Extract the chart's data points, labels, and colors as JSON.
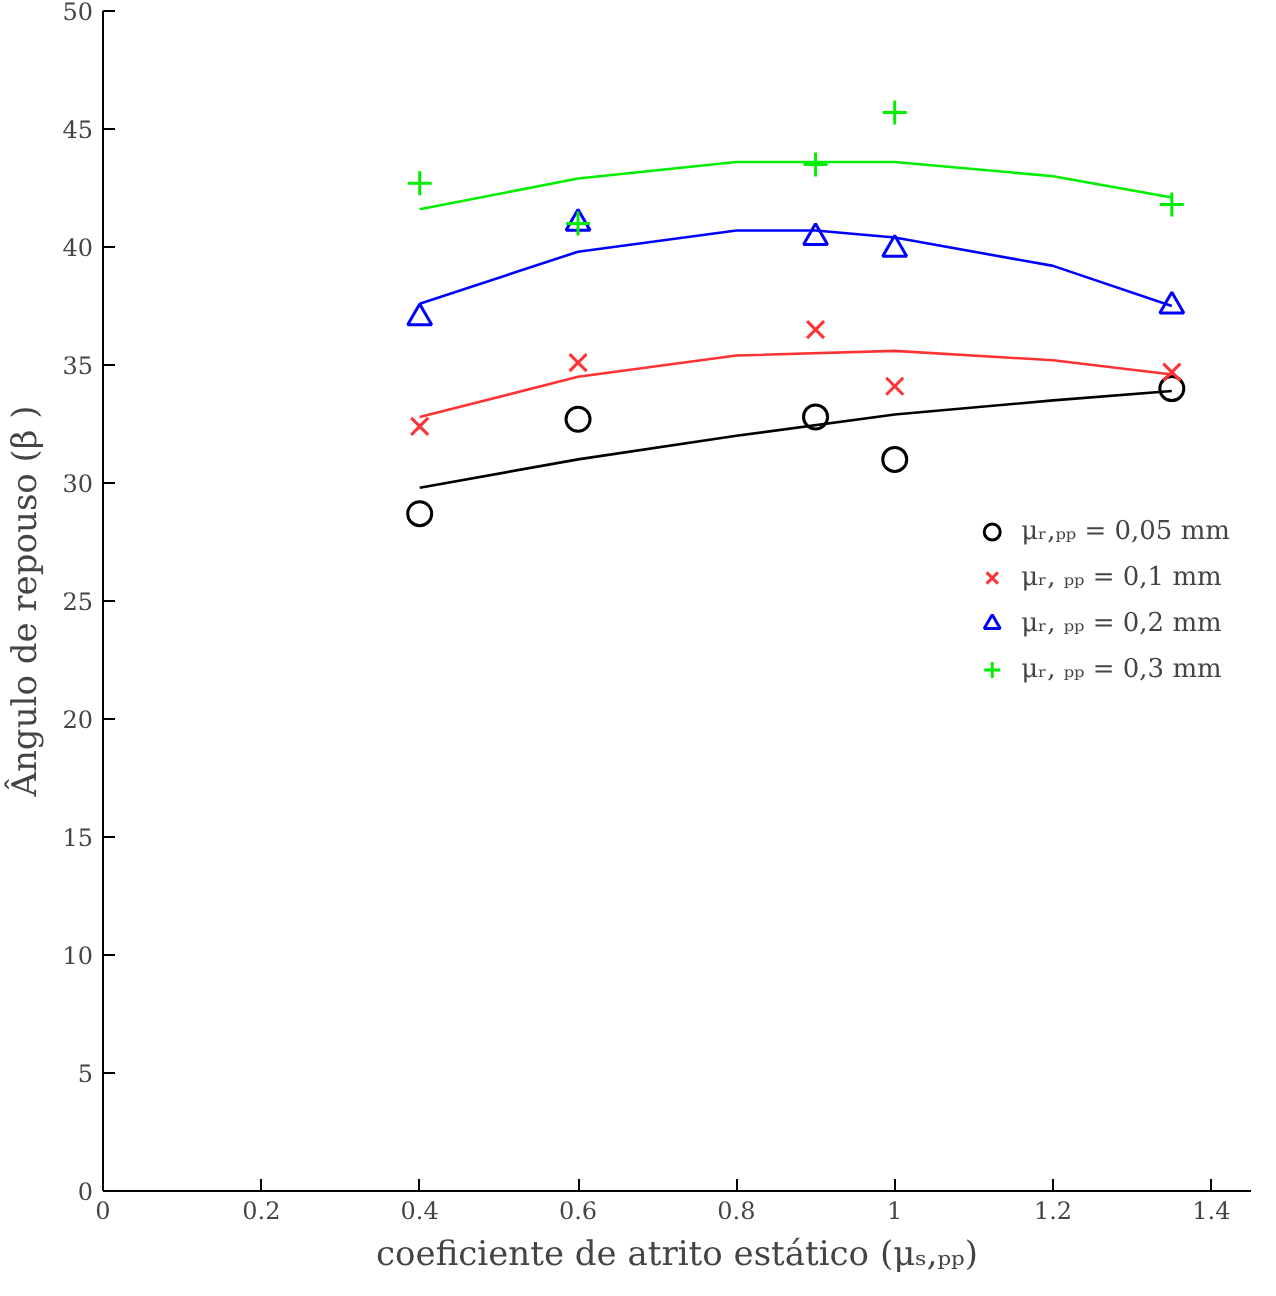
{
  "chart_data": {
    "type": "scatter",
    "xlabel": "coeficiente de atrito estático (μₛ,ₚₚ)",
    "ylabel": "Ângulo de repouso (β )",
    "x": [
      0.4,
      0.6,
      0.9,
      1.0,
      1.35
    ],
    "series": [
      {
        "name": "μᵣ,ₚₚ = 0,05 mm",
        "color": "#000000",
        "marker": "circle",
        "values": [
          28.7,
          32.7,
          32.8,
          31.0,
          34.0
        ]
      },
      {
        "name": "μᵣ, ₚₚ = 0,1 mm",
        "color": "#ff3333",
        "marker": "x",
        "values": [
          32.4,
          35.1,
          36.5,
          34.1,
          34.7
        ]
      },
      {
        "name": "μᵣ, ₚₚ = 0,2 mm",
        "color": "#0000ff",
        "marker": "triangle",
        "values": [
          37.0,
          41.0,
          40.4,
          39.9,
          37.5
        ]
      },
      {
        "name": "μᵣ, ₚₚ = 0,3 mm",
        "color": "#00ee00",
        "marker": "cross",
        "values": [
          42.7,
          41.0,
          43.5,
          45.7,
          41.8
        ]
      },
      {
        "type": "line",
        "color": "#000000",
        "x": [
          0.4,
          0.6,
          0.8,
          1.0,
          1.2,
          1.35
        ],
        "values": [
          29.8,
          31.0,
          32.0,
          32.9,
          33.5,
          33.9
        ]
      },
      {
        "type": "line",
        "color": "#ff3333",
        "x": [
          0.4,
          0.6,
          0.8,
          1.0,
          1.2,
          1.35
        ],
        "values": [
          32.8,
          34.5,
          35.4,
          35.6,
          35.2,
          34.6
        ]
      },
      {
        "type": "line",
        "color": "#0000ff",
        "x": [
          0.4,
          0.6,
          0.8,
          0.9,
          1.0,
          1.2,
          1.35
        ],
        "values": [
          37.6,
          39.8,
          40.7,
          40.7,
          40.4,
          39.2,
          37.5
        ]
      },
      {
        "type": "line",
        "color": "#00ee00",
        "x": [
          0.4,
          0.6,
          0.8,
          1.0,
          1.2,
          1.35
        ],
        "values": [
          41.6,
          42.9,
          43.6,
          43.6,
          43.0,
          42.1
        ]
      }
    ],
    "xlim": [
      0,
      1.45
    ],
    "ylim": [
      0,
      50
    ],
    "xticks": [
      {
        "value": 0,
        "label": "0"
      },
      0.2,
      0.4,
      0.6,
      0.8,
      {
        "value": 1.0,
        "label": "1"
      },
      1.2,
      1.4
    ],
    "yticks": [
      0,
      5,
      10,
      15,
      20,
      25,
      30,
      35,
      40,
      45,
      50
    ],
    "grid": false,
    "legend": "right"
  }
}
